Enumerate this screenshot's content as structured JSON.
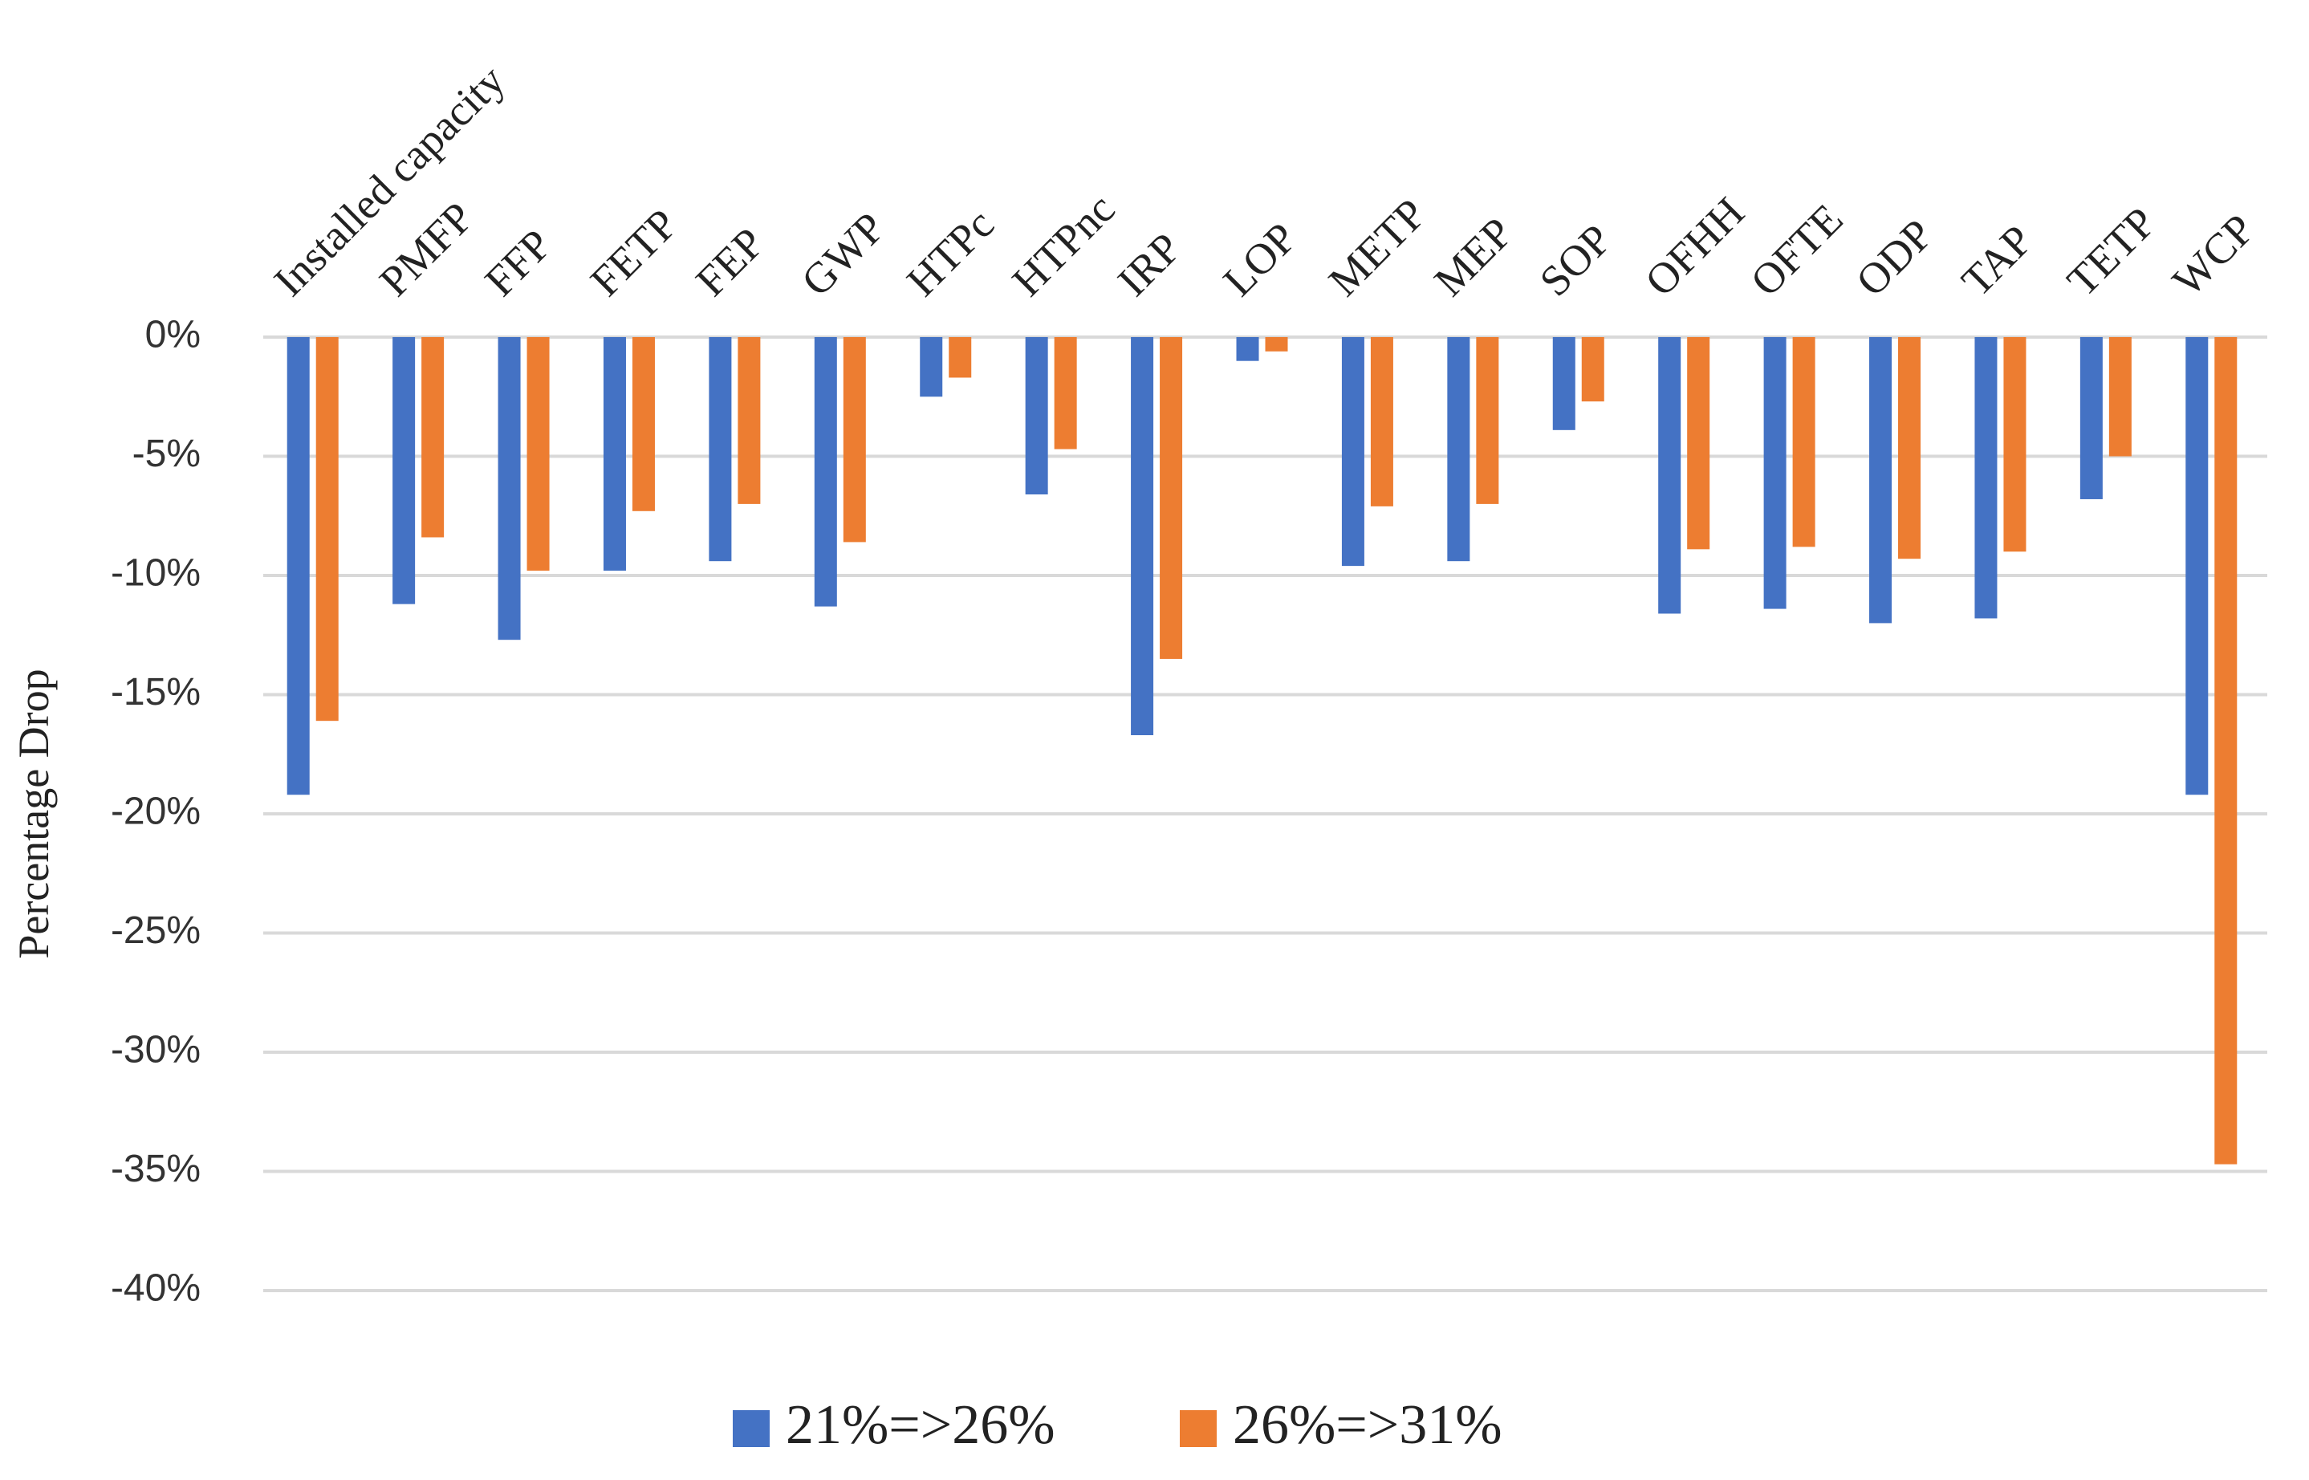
{
  "chart_data": {
    "type": "bar",
    "y_label": "Percentage Drop",
    "categories": [
      "Installed capacity",
      "PMFP",
      "FFP",
      "FETP",
      "FEP",
      "GWP",
      "HTPc",
      "HTPnc",
      "IRP",
      "LOP",
      "METP",
      "MEP",
      "SOP",
      "OFHH",
      "OFTE",
      "ODP",
      "TAP",
      "TETP",
      "WCP"
    ],
    "series": [
      {
        "name": "21%=>26%",
        "color": "#4472c4",
        "values": [
          -19.2,
          -11.2,
          -12.7,
          -9.8,
          -9.4,
          -11.3,
          -2.5,
          -6.6,
          -16.7,
          -1.0,
          -9.6,
          -9.4,
          -3.9,
          -11.6,
          -11.4,
          -12.0,
          -11.8,
          -6.8,
          -19.2
        ]
      },
      {
        "name": "26%=>31%",
        "color": "#ed7d31",
        "values": [
          -16.1,
          -8.4,
          -9.8,
          -7.3,
          -7.0,
          -8.6,
          -1.7,
          -4.7,
          -13.5,
          -0.6,
          -7.1,
          -7.0,
          -2.7,
          -8.9,
          -8.8,
          -9.3,
          -9.0,
          -5.0,
          -34.7
        ]
      }
    ],
    "ylim": [
      -40,
      0
    ],
    "yticks": [
      {
        "value": 0,
        "label": "0%"
      },
      {
        "value": -5,
        "label": "-5%"
      },
      {
        "value": -10,
        "label": "-10%"
      },
      {
        "value": -15,
        "label": "-15%"
      },
      {
        "value": -20,
        "label": "-20%"
      },
      {
        "value": -25,
        "label": "-25%"
      },
      {
        "value": -30,
        "label": "-30%"
      },
      {
        "value": -35,
        "label": "-35%"
      },
      {
        "value": -40,
        "label": "-40%"
      }
    ],
    "grid": true
  }
}
